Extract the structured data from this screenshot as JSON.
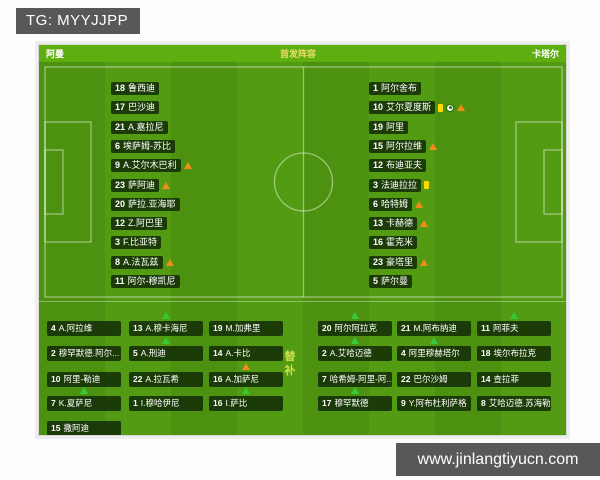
{
  "badges": {
    "tg": "TG: MYYJJPP",
    "site": "www.jinlangtiyucn.com"
  },
  "header": {
    "home": "阿曼",
    "title": "首发阵容",
    "away": "卡塔尔"
  },
  "subs_label": "替补",
  "colors": {
    "pitch_green": "#4c9210",
    "header_green": "#5fae10",
    "box_dark": "#0e2405",
    "sub_in_green": "#35c93b",
    "sub_out_orange": "#ef8c1a",
    "yellow_card": "#ffd900",
    "badge_gray": "#57585a",
    "title_yellow": "#e9df6a"
  },
  "home_starters": [
    {
      "num": 18,
      "name": "鲁西迪",
      "icons": []
    },
    {
      "num": 17,
      "name": "巴沙迪",
      "icons": []
    },
    {
      "num": 21,
      "name": "A.嘉拉尼",
      "icons": []
    },
    {
      "num": 6,
      "name": "埃萨姆-苏比",
      "icons": []
    },
    {
      "num": 9,
      "name": "A.艾尔木巴利",
      "icons": [
        "out"
      ]
    },
    {
      "num": 23,
      "name": "萨阿迪",
      "icons": [
        "out"
      ]
    },
    {
      "num": 20,
      "name": "萨拉.亚海耶",
      "icons": []
    },
    {
      "num": 12,
      "name": "Z.阿巴里",
      "icons": []
    },
    {
      "num": 3,
      "name": "F.比亚特",
      "icons": []
    },
    {
      "num": 8,
      "name": "A.法瓦兹",
      "icons": [
        "out"
      ]
    },
    {
      "num": 11,
      "name": "阿尔-穆凯尼",
      "icons": []
    }
  ],
  "away_starters": [
    {
      "num": 1,
      "name": "阿尔舍布",
      "icons": []
    },
    {
      "num": 10,
      "name": "艾尔夏度斯",
      "icons": [
        "yellow",
        "goal",
        "out"
      ]
    },
    {
      "num": 19,
      "name": "阿里",
      "icons": []
    },
    {
      "num": 15,
      "name": "阿尔拉维",
      "icons": [
        "out"
      ]
    },
    {
      "num": 12,
      "name": "布迪亚夫",
      "icons": []
    },
    {
      "num": 3,
      "name": "法迪拉拉",
      "icons": [
        "yellow"
      ]
    },
    {
      "num": 6,
      "name": "哈特姆",
      "icons": [
        "out"
      ]
    },
    {
      "num": 13,
      "name": "卡赫德",
      "icons": [
        "out"
      ]
    },
    {
      "num": 16,
      "name": "霍克米",
      "icons": []
    },
    {
      "num": 23,
      "name": "豪塔里",
      "icons": [
        "out"
      ]
    },
    {
      "num": 5,
      "name": "萨尔曼",
      "icons": []
    }
  ],
  "home_subs": [
    {
      "num": 4,
      "name": "A.阿拉维",
      "arrow": null
    },
    {
      "num": 13,
      "name": "A.穆卡海尼",
      "arrow": "green"
    },
    {
      "num": 19,
      "name": "M.加弗里",
      "arrow": null
    },
    {
      "num": 2,
      "name": "穆罕默德.阿尔...",
      "arrow": null
    },
    {
      "num": 5,
      "name": "A.刑迪",
      "arrow": "green"
    },
    {
      "num": 14,
      "name": "A.卡比",
      "arrow": null
    },
    {
      "num": 10,
      "name": "阿里-勒迪",
      "arrow": null
    },
    {
      "num": 22,
      "name": "A.拉瓦希",
      "arrow": null
    },
    {
      "num": 16,
      "name": "A.加萨尼",
      "arrow": "orange"
    },
    {
      "num": 7,
      "name": "K.夏萨尼",
      "arrow": "green"
    },
    {
      "num": 1,
      "name": "I.穆哈伊尼",
      "arrow": null
    },
    {
      "num": 16,
      "name": "I.萨比",
      "arrow": "green"
    },
    {
      "num": 15,
      "name": "撒阿迪",
      "arrow": null
    }
  ],
  "away_subs": [
    {
      "num": 20,
      "name": "阿尔阿拉克",
      "arrow": "green"
    },
    {
      "num": 21,
      "name": "M.阿布纳迪",
      "arrow": null
    },
    {
      "num": 11,
      "name": "阿菲夫",
      "arrow": "green"
    },
    {
      "num": 2,
      "name": "A.艾哈迈德",
      "arrow": "green"
    },
    {
      "num": 4,
      "name": "阿里穆赫塔尔",
      "arrow": "green"
    },
    {
      "num": 18,
      "name": "埃尔布拉克",
      "arrow": null
    },
    {
      "num": 7,
      "name": "哈希姆-阿里-阿...",
      "arrow": null
    },
    {
      "num": 22,
      "name": "巴尔沙姆",
      "arrow": null
    },
    {
      "num": 14,
      "name": "查拉菲",
      "arrow": null
    },
    {
      "num": 17,
      "name": "穆罕默德",
      "arrow": "green"
    },
    {
      "num": 9,
      "name": "Y.阿布杜利萨格",
      "arrow": null
    },
    {
      "num": 8,
      "name": "艾哈迈德.苏海勒",
      "arrow": null
    }
  ]
}
